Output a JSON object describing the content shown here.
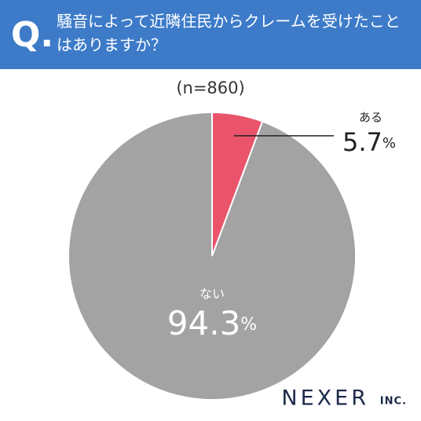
{
  "chart_data": {
    "type": "pie",
    "badge": "Q.",
    "title": "騒音によって近隣住民からクレームを受けたことはありますか？",
    "subtitle": "(n=860)",
    "categories": [
      "ある",
      "ない"
    ],
    "values": [
      5.7,
      94.3
    ],
    "unit": "%",
    "colors": [
      "#e9546b",
      "#a3a3a3"
    ],
    "logo": "NEXER",
    "logo_suffix": "INC."
  }
}
